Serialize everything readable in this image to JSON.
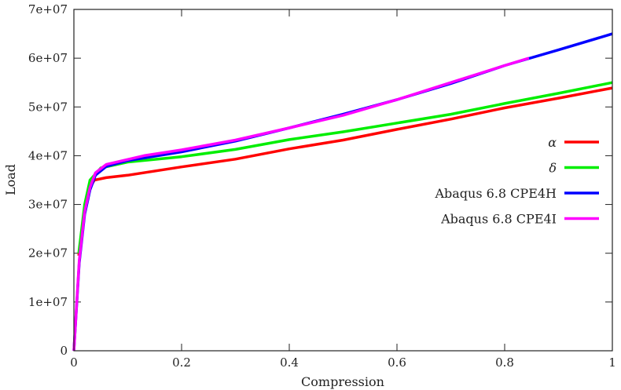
{
  "chart_data": {
    "type": "line",
    "title": "",
    "xlabel": "Compression",
    "ylabel": "Load",
    "xlim": [
      0,
      1
    ],
    "ylim": [
      0,
      70000000
    ],
    "grid": false,
    "legend_position": "right",
    "xticks": [
      0,
      0.2,
      0.4,
      0.6,
      0.8,
      1
    ],
    "xtick_labels": [
      "0",
      "0.2",
      "0.4",
      "0.6",
      "0.8",
      "1"
    ],
    "yticks": [
      0,
      10000000,
      20000000,
      30000000,
      40000000,
      50000000,
      60000000,
      70000000
    ],
    "ytick_labels": [
      "0",
      "1e+07",
      "2e+07",
      "3e+07",
      "4e+07",
      "5e+07",
      "6e+07",
      "7e+07"
    ],
    "series": [
      {
        "name": "α",
        "color": "#ff0000",
        "x": [
          0.009,
          0.02,
          0.03,
          0.038,
          0.06,
          0.1,
          0.2,
          0.3,
          0.4,
          0.5,
          0.6,
          0.7,
          0.8,
          0.9,
          1.0
        ],
        "y": [
          19500000,
          29000000,
          33500000,
          35000000,
          35500000,
          36000000,
          37700000,
          39300000,
          41400000,
          43200000,
          45400000,
          47500000,
          49800000,
          51800000,
          53900000
        ]
      },
      {
        "name": "δ",
        "color": "#00ee00",
        "x": [
          0.009,
          0.02,
          0.03,
          0.05,
          0.1,
          0.2,
          0.3,
          0.4,
          0.5,
          0.6,
          0.7,
          0.8,
          0.9,
          1.0
        ],
        "y": [
          20000000,
          30000000,
          35000000,
          37500000,
          38700000,
          39800000,
          41300000,
          43300000,
          44900000,
          46700000,
          48500000,
          50700000,
          52800000,
          55000000
        ]
      },
      {
        "name": "Abaqus 6.8 CPE4H",
        "color": "#0000ff",
        "x": [
          0,
          0.01,
          0.02,
          0.03,
          0.04,
          0.06,
          0.1,
          0.2,
          0.3,
          0.4,
          0.5,
          0.6,
          0.7,
          0.8,
          0.9,
          1.0
        ],
        "y": [
          0,
          18000000,
          28000000,
          33000000,
          36000000,
          37800000,
          39000000,
          40800000,
          43000000,
          45700000,
          48500000,
          51500000,
          54800000,
          58500000,
          61700000,
          65000000
        ]
      },
      {
        "name": "Abaqus 6.8 CPE4I",
        "color": "#ff00ff",
        "x": [
          0,
          0.01,
          0.02,
          0.03,
          0.04,
          0.06,
          0.13,
          0.2,
          0.3,
          0.4,
          0.5,
          0.6,
          0.7,
          0.8,
          0.845
        ],
        "y": [
          0,
          18500000,
          28500000,
          33500000,
          36500000,
          38200000,
          40000000,
          41200000,
          43200000,
          45700000,
          48300000,
          51500000,
          55000000,
          58500000,
          60000000
        ]
      }
    ]
  }
}
